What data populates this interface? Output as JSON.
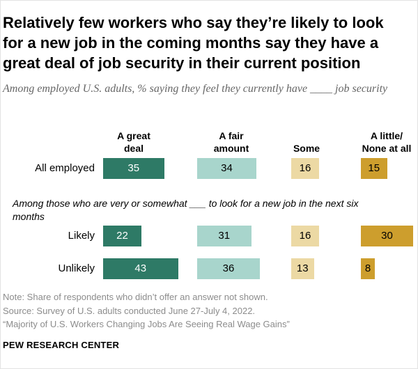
{
  "title": "Relatively few workers who say they’re likely to look for a new job in the coming months say they have a great deal of job security in their current position",
  "subtitle": "Among employed U.S. adults, % saying they feel they currently have ____ job security",
  "chart_data": {
    "type": "bar",
    "columns": [
      "A great deal",
      "A fair amount",
      "Some",
      "A little/ None at all"
    ],
    "column_headers": [
      [
        "A great",
        "deal"
      ],
      [
        "A fair",
        "amount"
      ],
      [
        "Some"
      ],
      [
        "A little/",
        "None at all"
      ]
    ],
    "colors": [
      "#2e7a66",
      "#a8d5cc",
      "#ecd9a4",
      "#cd9e2d"
    ],
    "label_colors": [
      "#ffffff",
      "#000000",
      "#000000",
      "#000000"
    ],
    "rows": [
      {
        "label": "All employed",
        "values": [
          35,
          34,
          16,
          15
        ]
      },
      {
        "label": "Likely",
        "values": [
          22,
          31,
          16,
          30
        ]
      },
      {
        "label": "Unlikely",
        "values": [
          43,
          36,
          13,
          8
        ]
      }
    ],
    "group_note": "Among those who are very or somewhat ___ to look for a new job in the next six months"
  },
  "footer": {
    "note": "Note: Share of respondents who didn’t offer an answer not shown.",
    "source": "Source: Survey of U.S. adults conducted June 27-July 4, 2022.",
    "report": "“Majority of U.S. Workers Changing Jobs Are Seeing Real Wage Gains”",
    "brand": "PEW RESEARCH CENTER"
  }
}
